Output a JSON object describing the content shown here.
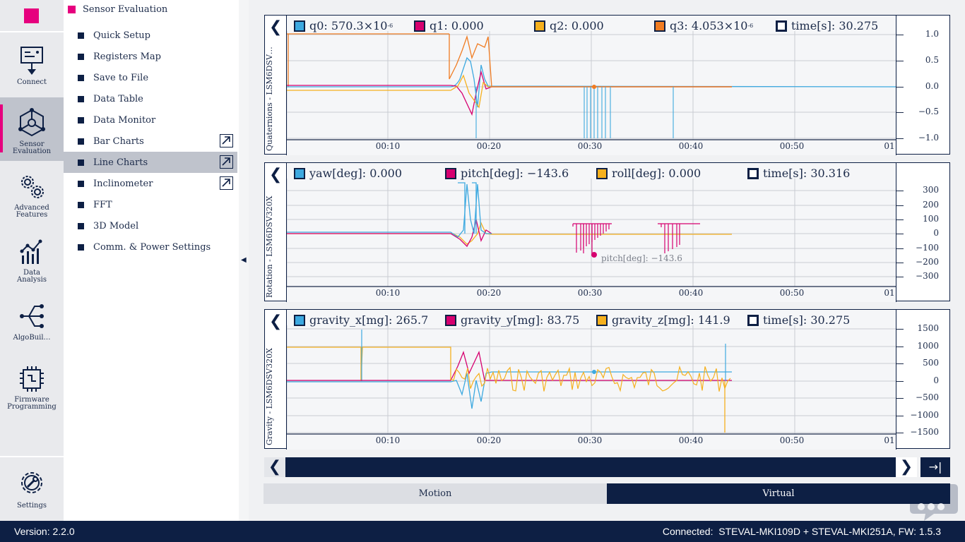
{
  "rail": {
    "items": [
      {
        "label": "Connect",
        "icon": "connect-icon"
      },
      {
        "label": "Sensor\nEvaluation",
        "icon": "sensor-evaluation-icon",
        "active": true
      },
      {
        "label": "Advanced\nFeatures",
        "icon": "gears-icon"
      },
      {
        "label": "Data\nAnalysis",
        "icon": "data-analysis-icon"
      },
      {
        "label": "AlgoBuil…",
        "icon": "algobuilder-icon"
      },
      {
        "label": "Firmware\nProgramming",
        "icon": "chip-icon"
      },
      {
        "label": "Settings",
        "icon": "settings-icon"
      }
    ]
  },
  "menu": {
    "title": "Sensor Evaluation",
    "items": [
      {
        "label": "Quick Setup",
        "ext": false
      },
      {
        "label": "Registers Map",
        "ext": false
      },
      {
        "label": "Save to File",
        "ext": false
      },
      {
        "label": "Data Table",
        "ext": false
      },
      {
        "label": "Data Monitor",
        "ext": false
      },
      {
        "label": "Bar Charts",
        "ext": true
      },
      {
        "label": "Line Charts",
        "ext": true,
        "active": true
      },
      {
        "label": "Inclinometer",
        "ext": true
      },
      {
        "label": "FFT",
        "ext": false
      },
      {
        "label": "3D Model",
        "ext": false
      },
      {
        "label": "Comm. & Power Settings",
        "ext": false
      }
    ]
  },
  "colors": {
    "blue": "#3da9e0",
    "magenta": "#d6006f",
    "yellow": "#f5b01e",
    "orange": "#f07c22",
    "navy": "#0d1f44",
    "accent": "#e6007e"
  },
  "charts": {
    "x_ticks": [
      "00:10",
      "00:20",
      "00:30",
      "00:40",
      "00:50",
      "01"
    ],
    "quaternions": {
      "axis_label": "Quaternions - LSM6DSV…",
      "legend": [
        {
          "label": "q0: 570.3×10",
          "sup": "-6",
          "color": "#3da9e0"
        },
        {
          "label": "q1: 0.000",
          "color": "#d6006f"
        },
        {
          "label": "q2: 0.000",
          "color": "#f5b01e"
        },
        {
          "label": "q3: 4.053×10",
          "sup": "-6",
          "color": "#f07c22"
        },
        {
          "label": "time[s]: 30.275",
          "color": "#ffffff"
        }
      ],
      "y_ticks": [
        "1.0",
        "0.5",
        "0.0",
        "−0.5",
        "−1.0"
      ]
    },
    "rotation": {
      "axis_label": "Rotation - LSM6DSV320X",
      "legend": [
        {
          "label": "yaw[deg]: 0.000",
          "color": "#3da9e0"
        },
        {
          "label": "pitch[deg]: −143.6",
          "color": "#d6006f"
        },
        {
          "label": "roll[deg]: 0.000",
          "color": "#f5b01e"
        },
        {
          "label": "time[s]: 30.316",
          "color": "#ffffff"
        }
      ],
      "y_ticks": [
        "300",
        "200",
        "100",
        "0",
        "−100",
        "−200",
        "−300"
      ],
      "annotation": "pitch[deg]: −143.6"
    },
    "gravity": {
      "axis_label": "Gravity - LSM6DSV320X",
      "legend": [
        {
          "label": "gravity_x[mg]: 265.7",
          "color": "#3da9e0"
        },
        {
          "label": "gravity_y[mg]: 83.75",
          "color": "#d6006f"
        },
        {
          "label": "gravity_z[mg]: 141.9",
          "color": "#f5b01e"
        },
        {
          "label": "time[s]: 30.275",
          "color": "#ffffff"
        }
      ],
      "y_ticks": [
        "1500",
        "1000",
        "500",
        "0",
        "−500",
        "−1000",
        "−1500"
      ]
    }
  },
  "tabs": {
    "motion": "Motion",
    "virtual": "Virtual"
  },
  "status": {
    "version": "Version: 2.2.0",
    "connection": "Connected:  STEVAL-MKI109D + STEVAL-MKI251A, FW: 1.5.3"
  }
}
